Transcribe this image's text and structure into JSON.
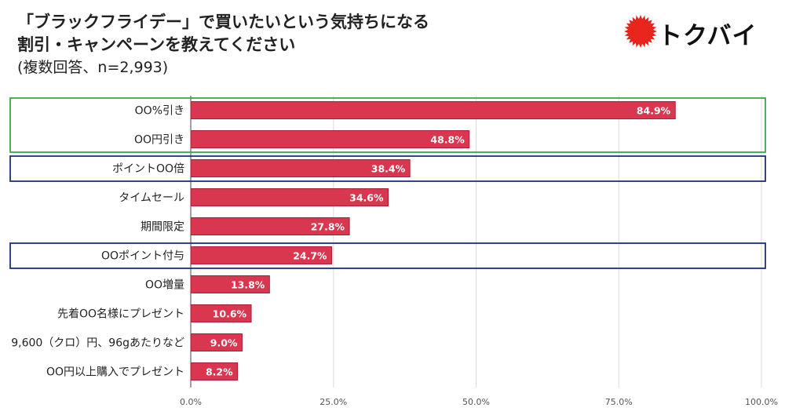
{
  "title_line1": "「ブラックフライデー」で買いたいという気持ちになる",
  "title_line2": "割引・キャンペーンを教えてください",
  "subtitle": "(複数回答、n=2,993)",
  "logo_text": "トクバイ",
  "colors": {
    "bar": "#d9364f",
    "bar_edge": "#a82035",
    "green_box": "#3aa84b",
    "navy_box": "#1f2f7a",
    "logo_sun": "#e8261e"
  },
  "chart_data": {
    "type": "bar",
    "orientation": "horizontal",
    "categories": [
      "OO%引き",
      "OO円引き",
      "ポイントOO倍",
      "タイムセール",
      "期間限定",
      "OOポイント付与",
      "OO増量",
      "先着OO名様にプレゼント",
      "9,600（クロ）円、96gあたりなど",
      "OO円以上購入でプレゼント"
    ],
    "values": [
      84.9,
      48.8,
      38.4,
      34.6,
      27.8,
      24.7,
      13.8,
      10.6,
      9.0,
      8.2
    ],
    "value_labels": [
      "84.9%",
      "48.8%",
      "38.4%",
      "34.6%",
      "27.8%",
      "24.7%",
      "13.8%",
      "10.6%",
      "9.0%",
      "8.2%"
    ],
    "xlim": [
      0,
      100
    ],
    "xticks": [
      0,
      25,
      50,
      75,
      100
    ],
    "xtick_labels": [
      "0.0%",
      "25.0%",
      "50.0%",
      "75.0%",
      "100.0%"
    ],
    "grid": true,
    "highlight_groups": [
      {
        "color": "green",
        "categories": [
          "OO%引き",
          "OO円引き"
        ]
      },
      {
        "color": "navy",
        "categories": [
          "ポイントOO倍"
        ]
      },
      {
        "color": "navy",
        "categories": [
          "OOポイント付与"
        ]
      }
    ]
  }
}
